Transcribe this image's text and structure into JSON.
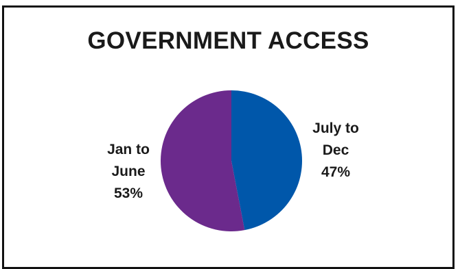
{
  "chart_data": {
    "type": "pie",
    "title": "GOVERNMENT ACCESS",
    "slices": [
      {
        "label_lines": [
          "July to",
          "Dec"
        ],
        "percent_label": "47%",
        "value": 47,
        "color": "#0057AA"
      },
      {
        "label_lines": [
          "Jan to",
          "June"
        ],
        "percent_label": "53%",
        "value": 53,
        "color": "#6B2A8C"
      }
    ],
    "start_angle_deg": 0,
    "direction": "clockwise",
    "legend": "none",
    "data_labels": "outside"
  }
}
